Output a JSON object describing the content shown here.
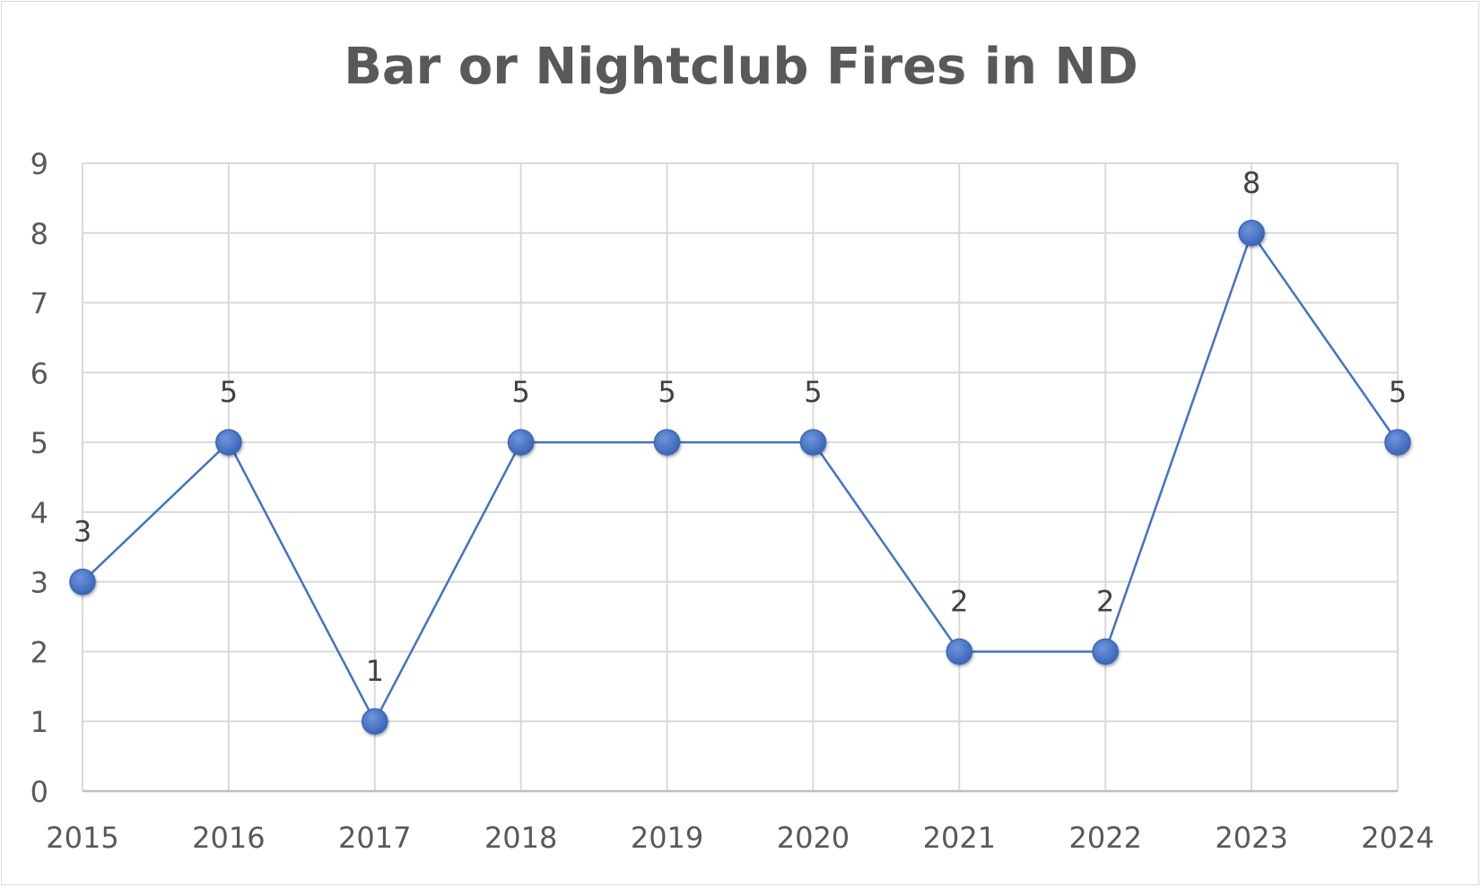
{
  "chart_data": {
    "type": "line",
    "title": "Bar or Nightclub Fires in ND",
    "xlabel": "",
    "ylabel": "",
    "categories": [
      "2015",
      "2016",
      "2017",
      "2018",
      "2019",
      "2020",
      "2021",
      "2022",
      "2023",
      "2024"
    ],
    "series": [
      {
        "values": [
          3,
          5,
          1,
          5,
          5,
          5,
          2,
          2,
          8,
          5
        ],
        "color": "#4472c4",
        "marker": "circle",
        "data_labels": true
      }
    ],
    "ylim": [
      0,
      9
    ],
    "yticks": [
      0,
      1,
      2,
      3,
      4,
      5,
      6,
      7,
      8,
      9
    ],
    "grid": true,
    "legend": "none"
  }
}
